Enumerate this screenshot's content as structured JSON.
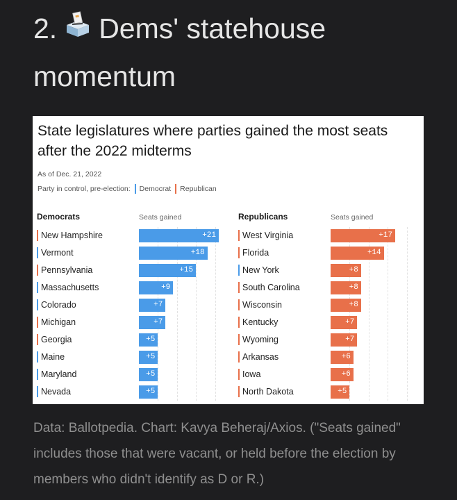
{
  "heading": {
    "number": "2.",
    "icon": "ballot-box-icon",
    "text": "Dems' statehouse momentum"
  },
  "chart_data": {
    "type": "bar",
    "title": "State legislatures where parties gained the most seats after the 2022 midterms",
    "subtitle": "As of Dec. 21, 2022",
    "legend_label": "Party in control, pre-election:",
    "legend": [
      {
        "name": "Democrat",
        "color": "#4a9be8"
      },
      {
        "name": "Republican",
        "color": "#e8704a"
      }
    ],
    "colors": {
      "democrat": "#4a9be8",
      "republican": "#e8704a"
    },
    "xlim": [
      0,
      21
    ],
    "panels": [
      {
        "header": "Democrats",
        "value_header": "Seats gained",
        "bar_color": "#4a9be8",
        "rows": [
          {
            "state": "New Hampshire",
            "control": "R",
            "value": 21,
            "label": "+21"
          },
          {
            "state": "Vermont",
            "control": "D",
            "value": 18,
            "label": "+18"
          },
          {
            "state": "Pennsylvania",
            "control": "R",
            "value": 15,
            "label": "+15"
          },
          {
            "state": "Massachusetts",
            "control": "D",
            "value": 9,
            "label": "+9"
          },
          {
            "state": "Colorado",
            "control": "D",
            "value": 7,
            "label": "+7"
          },
          {
            "state": "Michigan",
            "control": "R",
            "value": 7,
            "label": "+7"
          },
          {
            "state": "Georgia",
            "control": "R",
            "value": 5,
            "label": "+5"
          },
          {
            "state": "Maine",
            "control": "D",
            "value": 5,
            "label": "+5"
          },
          {
            "state": "Maryland",
            "control": "D",
            "value": 5,
            "label": "+5"
          },
          {
            "state": "Nevada",
            "control": "D",
            "value": 5,
            "label": "+5"
          }
        ]
      },
      {
        "header": "Republicans",
        "value_header": "Seats gained",
        "bar_color": "#e8704a",
        "rows": [
          {
            "state": "West Virginia",
            "control": "R",
            "value": 17,
            "label": "+17"
          },
          {
            "state": "Florida",
            "control": "R",
            "value": 14,
            "label": "+14"
          },
          {
            "state": "New York",
            "control": "D",
            "value": 8,
            "label": "+8"
          },
          {
            "state": "South Carolina",
            "control": "R",
            "value": 8,
            "label": "+8"
          },
          {
            "state": "Wisconsin",
            "control": "R",
            "value": 8,
            "label": "+8"
          },
          {
            "state": "Kentucky",
            "control": "R",
            "value": 7,
            "label": "+7"
          },
          {
            "state": "Wyoming",
            "control": "R",
            "value": 7,
            "label": "+7"
          },
          {
            "state": "Arkansas",
            "control": "R",
            "value": 6,
            "label": "+6"
          },
          {
            "state": "Iowa",
            "control": "R",
            "value": 6,
            "label": "+6"
          },
          {
            "state": "North Dakota",
            "control": "R",
            "value": 5,
            "label": "+5"
          }
        ]
      }
    ]
  },
  "caption": "Data: Ballotpedia. Chart: Kavya Beheraj/Axios. (\"Seats gained\" includes those that were vacant, or held before the election by members who didn't identify as D or R.)"
}
